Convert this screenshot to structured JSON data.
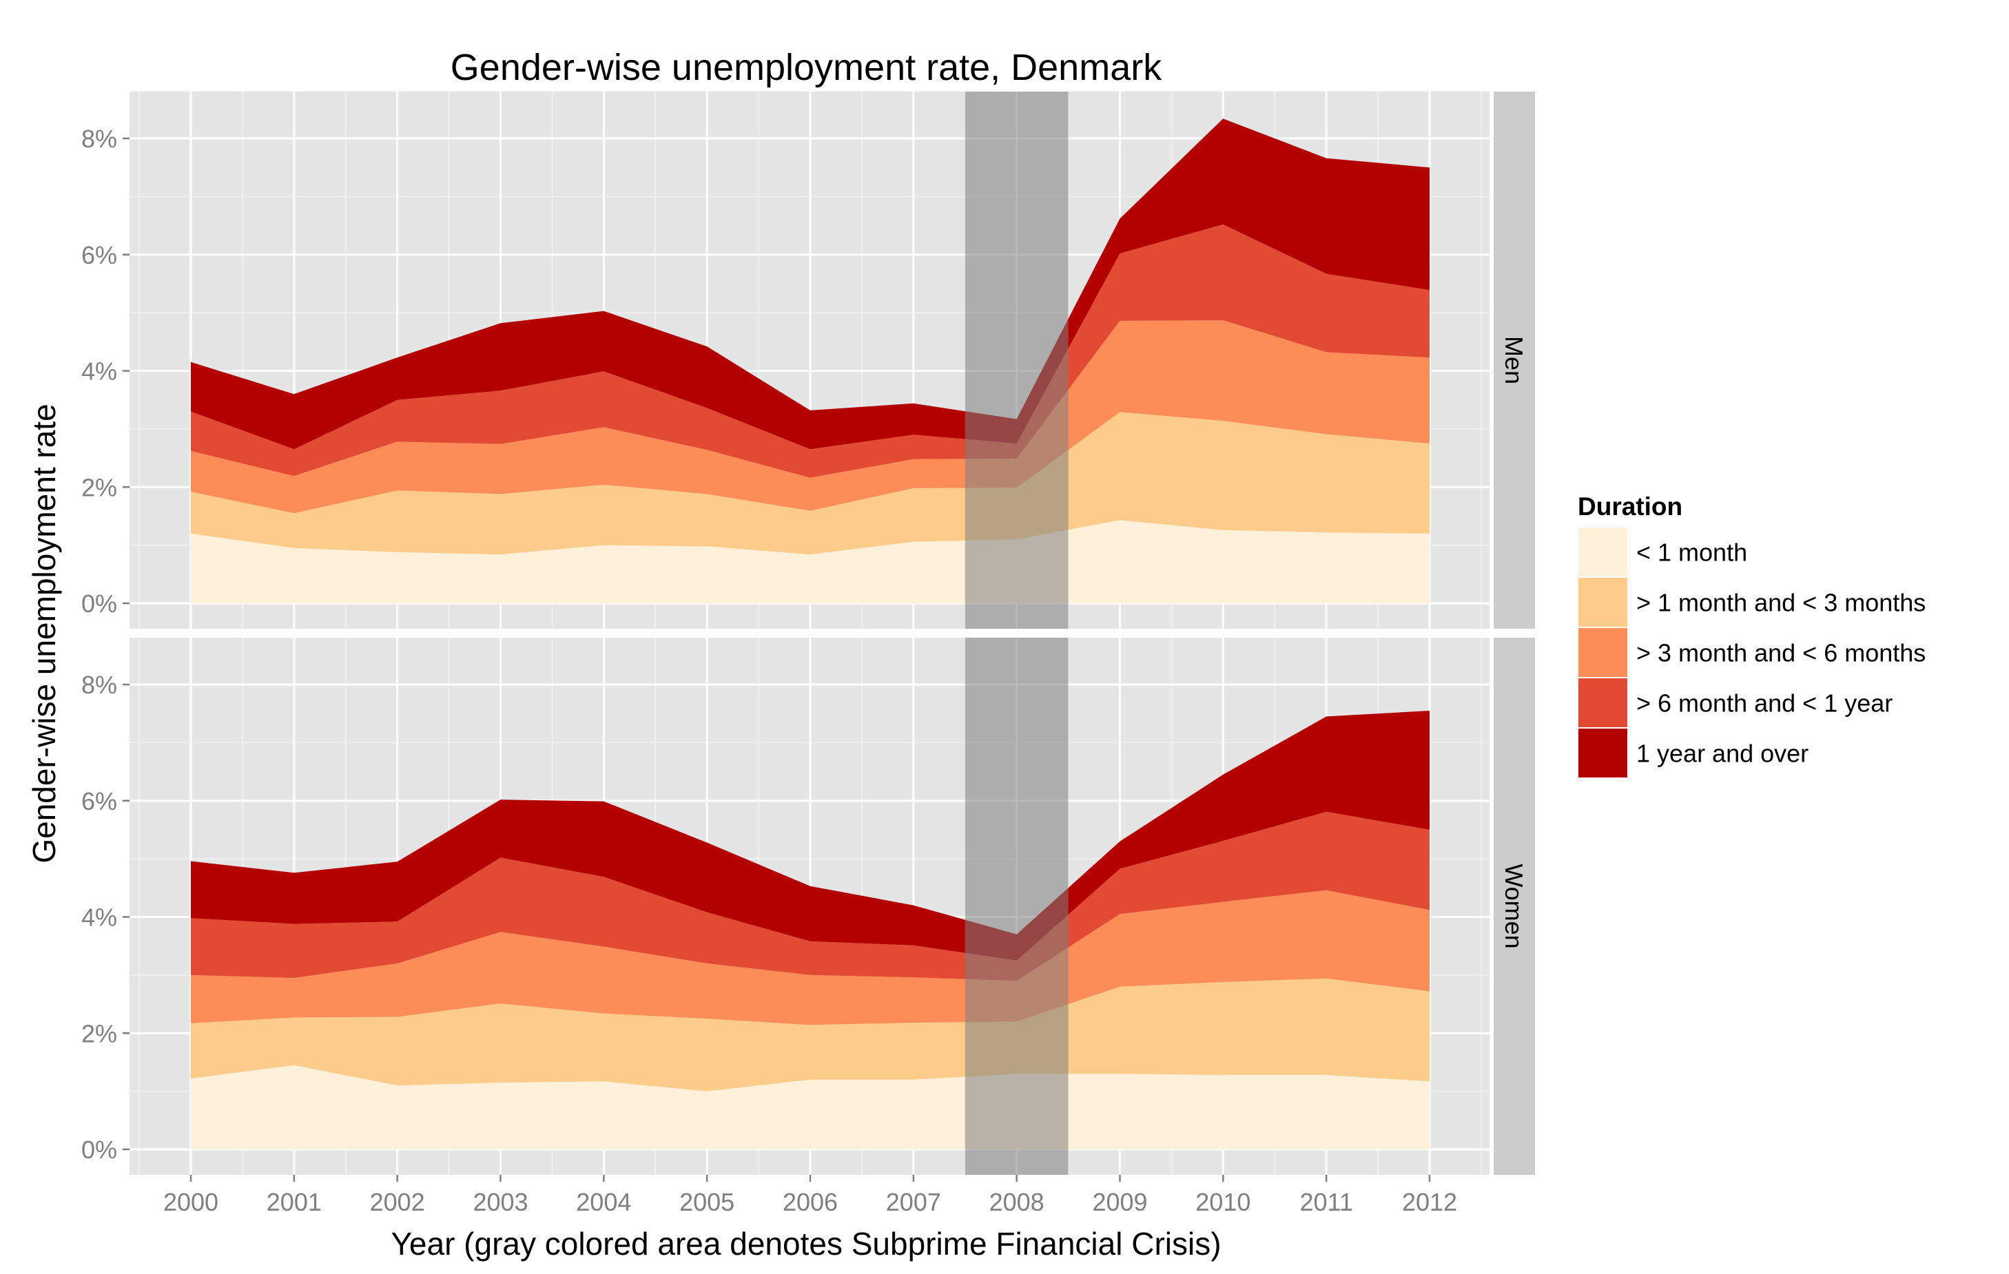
{
  "chart_data": {
    "type": "area",
    "stacked": true,
    "title": "Gender-wise unemployment rate, Denmark",
    "xlabel": "Year (gray colored area denotes Subprime Financial Crisis)",
    "ylabel": "Gender-wise unemployment rate",
    "x": [
      2000,
      2001,
      2002,
      2003,
      2004,
      2005,
      2006,
      2007,
      2008,
      2009,
      2010,
      2011,
      2012
    ],
    "x_tick_labels": [
      "2000",
      "2001",
      "2002",
      "2003",
      "2004",
      "2005",
      "2006",
      "2007",
      "2008",
      "2009",
      "2010",
      "2011",
      "2012"
    ],
    "xlim": [
      2000,
      2012
    ],
    "ylim": [
      0,
      8.5
    ],
    "y_ticks": [
      0,
      2,
      4,
      6,
      8
    ],
    "y_tick_labels": [
      "0%",
      "2%",
      "4%",
      "6%",
      "8%"
    ],
    "grid": true,
    "highlight_band": {
      "x_range": [
        2007.5,
        2008.5
      ],
      "color": "#808080"
    },
    "legend": {
      "title": "Duration",
      "position": "right",
      "entries": [
        "< 1 month",
        "> 1 month and < 3 months",
        "> 3 month and < 6 months",
        "> 6 month and < 1 year",
        "1 year and over"
      ],
      "colors": [
        "#FEF0D9",
        "#FDCC8A",
        "#FC8D59",
        "#E34A33",
        "#B30000"
      ]
    },
    "panels": [
      {
        "label": "Men",
        "series": [
          {
            "name": "< 1 month",
            "values": [
              1.2,
              0.95,
              0.88,
              0.84,
              1.0,
              0.98,
              0.84,
              1.06,
              1.1,
              1.43,
              1.26,
              1.22,
              1.2
            ]
          },
          {
            "name": "> 1 month and < 3 months",
            "values": [
              0.72,
              0.6,
              1.06,
              1.04,
              1.04,
              0.9,
              0.75,
              0.92,
              0.89,
              1.86,
              1.88,
              1.69,
              1.55
            ]
          },
          {
            "name": "> 3 month and < 6 months",
            "values": [
              0.7,
              0.64,
              0.84,
              0.86,
              0.99,
              0.76,
              0.57,
              0.5,
              0.5,
              1.57,
              1.73,
              1.41,
              1.48
            ]
          },
          {
            "name": "> 6 month and < 1 year",
            "values": [
              0.68,
              0.46,
              0.72,
              0.92,
              0.96,
              0.72,
              0.49,
              0.42,
              0.26,
              1.16,
              1.65,
              1.35,
              1.16
            ]
          },
          {
            "name": "1 year and over",
            "values": [
              0.85,
              0.95,
              0.73,
              1.16,
              1.04,
              1.06,
              0.67,
              0.54,
              0.42,
              0.6,
              1.82,
              1.99,
              2.11
            ]
          }
        ]
      },
      {
        "label": "Women",
        "series": [
          {
            "name": "< 1 month",
            "values": [
              1.22,
              1.45,
              1.1,
              1.15,
              1.17,
              1.0,
              1.2,
              1.2,
              1.3,
              1.3,
              1.28,
              1.28,
              1.17
            ]
          },
          {
            "name": "> 1 month and < 3 months",
            "values": [
              0.95,
              0.82,
              1.18,
              1.36,
              1.17,
              1.25,
              0.94,
              0.98,
              0.9,
              1.5,
              1.6,
              1.66,
              1.55
            ]
          },
          {
            "name": "> 3 month and < 6 months",
            "values": [
              0.83,
              0.68,
              0.92,
              1.23,
              1.15,
              0.95,
              0.86,
              0.78,
              0.7,
              1.25,
              1.38,
              1.52,
              1.4
            ]
          },
          {
            "name": "> 6 month and < 1 year",
            "values": [
              0.98,
              0.93,
              0.72,
              1.28,
              1.2,
              0.88,
              0.58,
              0.55,
              0.35,
              0.78,
              1.05,
              1.35,
              1.38
            ]
          },
          {
            "name": "1 year and over",
            "values": [
              0.98,
              0.88,
              1.03,
              1.0,
              1.3,
              1.2,
              0.95,
              0.69,
              0.45,
              0.47,
              1.14,
              1.64,
              2.05
            ]
          }
        ]
      }
    ]
  }
}
